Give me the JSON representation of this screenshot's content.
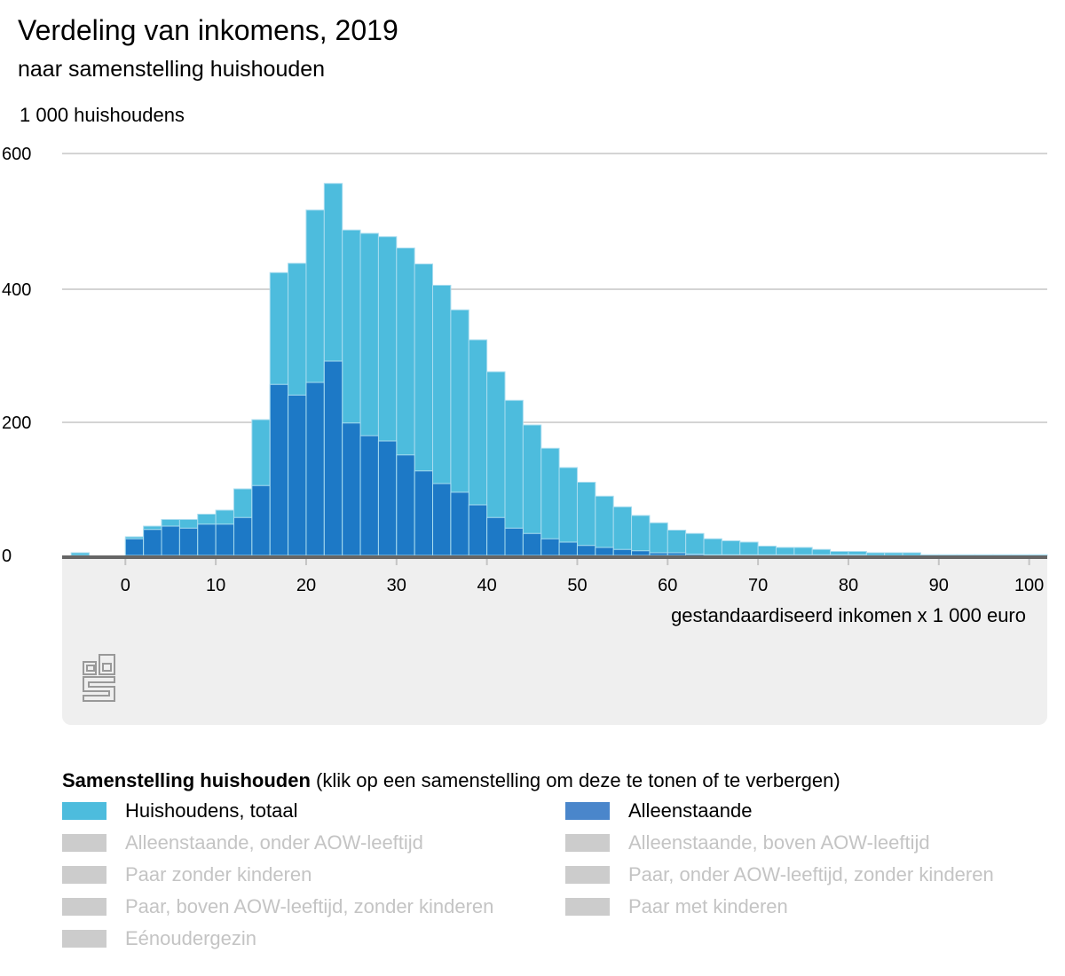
{
  "header": {
    "title": "Verdeling van inkomens, 2019",
    "subtitle": "naar samenstelling huishouden"
  },
  "chart_data": {
    "type": "bar",
    "subtype": "overlapping histogram",
    "ylabel": "1 000 huishoudens",
    "xlabel": "gestandaardiseerd inkomen x 1 000 euro",
    "ylim": [
      0,
      600
    ],
    "yticks": [
      "0",
      "200",
      "400",
      "600"
    ],
    "xlim": [
      -7,
      102
    ],
    "xticks": [
      "0",
      "10",
      "20",
      "30",
      "40",
      "50",
      "60",
      "70",
      "80",
      "90",
      "100"
    ],
    "grid": true,
    "bin_width": 2,
    "bin_starts": [
      -6,
      -4,
      -2,
      0,
      2,
      4,
      6,
      8,
      10,
      12,
      14,
      16,
      18,
      20,
      22,
      24,
      26,
      28,
      30,
      32,
      34,
      36,
      38,
      40,
      42,
      44,
      46,
      48,
      50,
      52,
      54,
      56,
      58,
      60,
      62,
      64,
      66,
      68,
      70,
      72,
      74,
      76,
      78,
      80,
      82,
      84,
      86,
      88,
      90,
      92,
      94,
      96,
      98,
      100
    ],
    "series": [
      {
        "name": "Huishoudens, totaal",
        "color": "#4dbcdd",
        "values": [
          4,
          0,
          0,
          28,
          44,
          54,
          54,
          62,
          68,
          100,
          204,
          425,
          439,
          519,
          559,
          489,
          484,
          479,
          462,
          438,
          406,
          369,
          324,
          276,
          233,
          196,
          161,
          132,
          110,
          89,
          73,
          60,
          49,
          38,
          33,
          25,
          22,
          20,
          14,
          12,
          12,
          9,
          6,
          6,
          4,
          4,
          4,
          1,
          1,
          1,
          1,
          1,
          1,
          1
        ]
      },
      {
        "name": "Alleenstaande",
        "color": "#1a75c4",
        "values": [
          0,
          0,
          0,
          25,
          39,
          44,
          41,
          47,
          47,
          57,
          105,
          257,
          241,
          260,
          292,
          199,
          180,
          172,
          151,
          127,
          108,
          95,
          76,
          57,
          41,
          33,
          25,
          20,
          15,
          12,
          9,
          7,
          4,
          4,
          2,
          1,
          1,
          1,
          1,
          1,
          1,
          1,
          1,
          1,
          0,
          0,
          0,
          0,
          0,
          0,
          0,
          0,
          0,
          0
        ]
      }
    ]
  },
  "logo": "cbs",
  "legend": {
    "title": "Samenstelling huishouden",
    "hint": " (klik op een samenstelling om deze te tonen of te verbergen)",
    "items": [
      {
        "label": "Huishoudens, totaal",
        "active": true,
        "color": "#4dbcdd"
      },
      {
        "label": "Alleenstaande",
        "active": true,
        "color": "#4a86cb"
      },
      {
        "label": "Alleenstaande, onder AOW-leeftijd",
        "active": false
      },
      {
        "label": "Alleenstaande, boven AOW-leeftijd",
        "active": false
      },
      {
        "label": "Paar zonder kinderen",
        "active": false
      },
      {
        "label": "Paar, onder AOW-leeftijd, zonder kinderen",
        "active": false
      },
      {
        "label": "Paar, boven AOW-leeftijd, zonder kinderen",
        "active": false
      },
      {
        "label": "Paar met kinderen",
        "active": false
      },
      {
        "label": "Eénoudergezin",
        "active": false
      }
    ]
  }
}
